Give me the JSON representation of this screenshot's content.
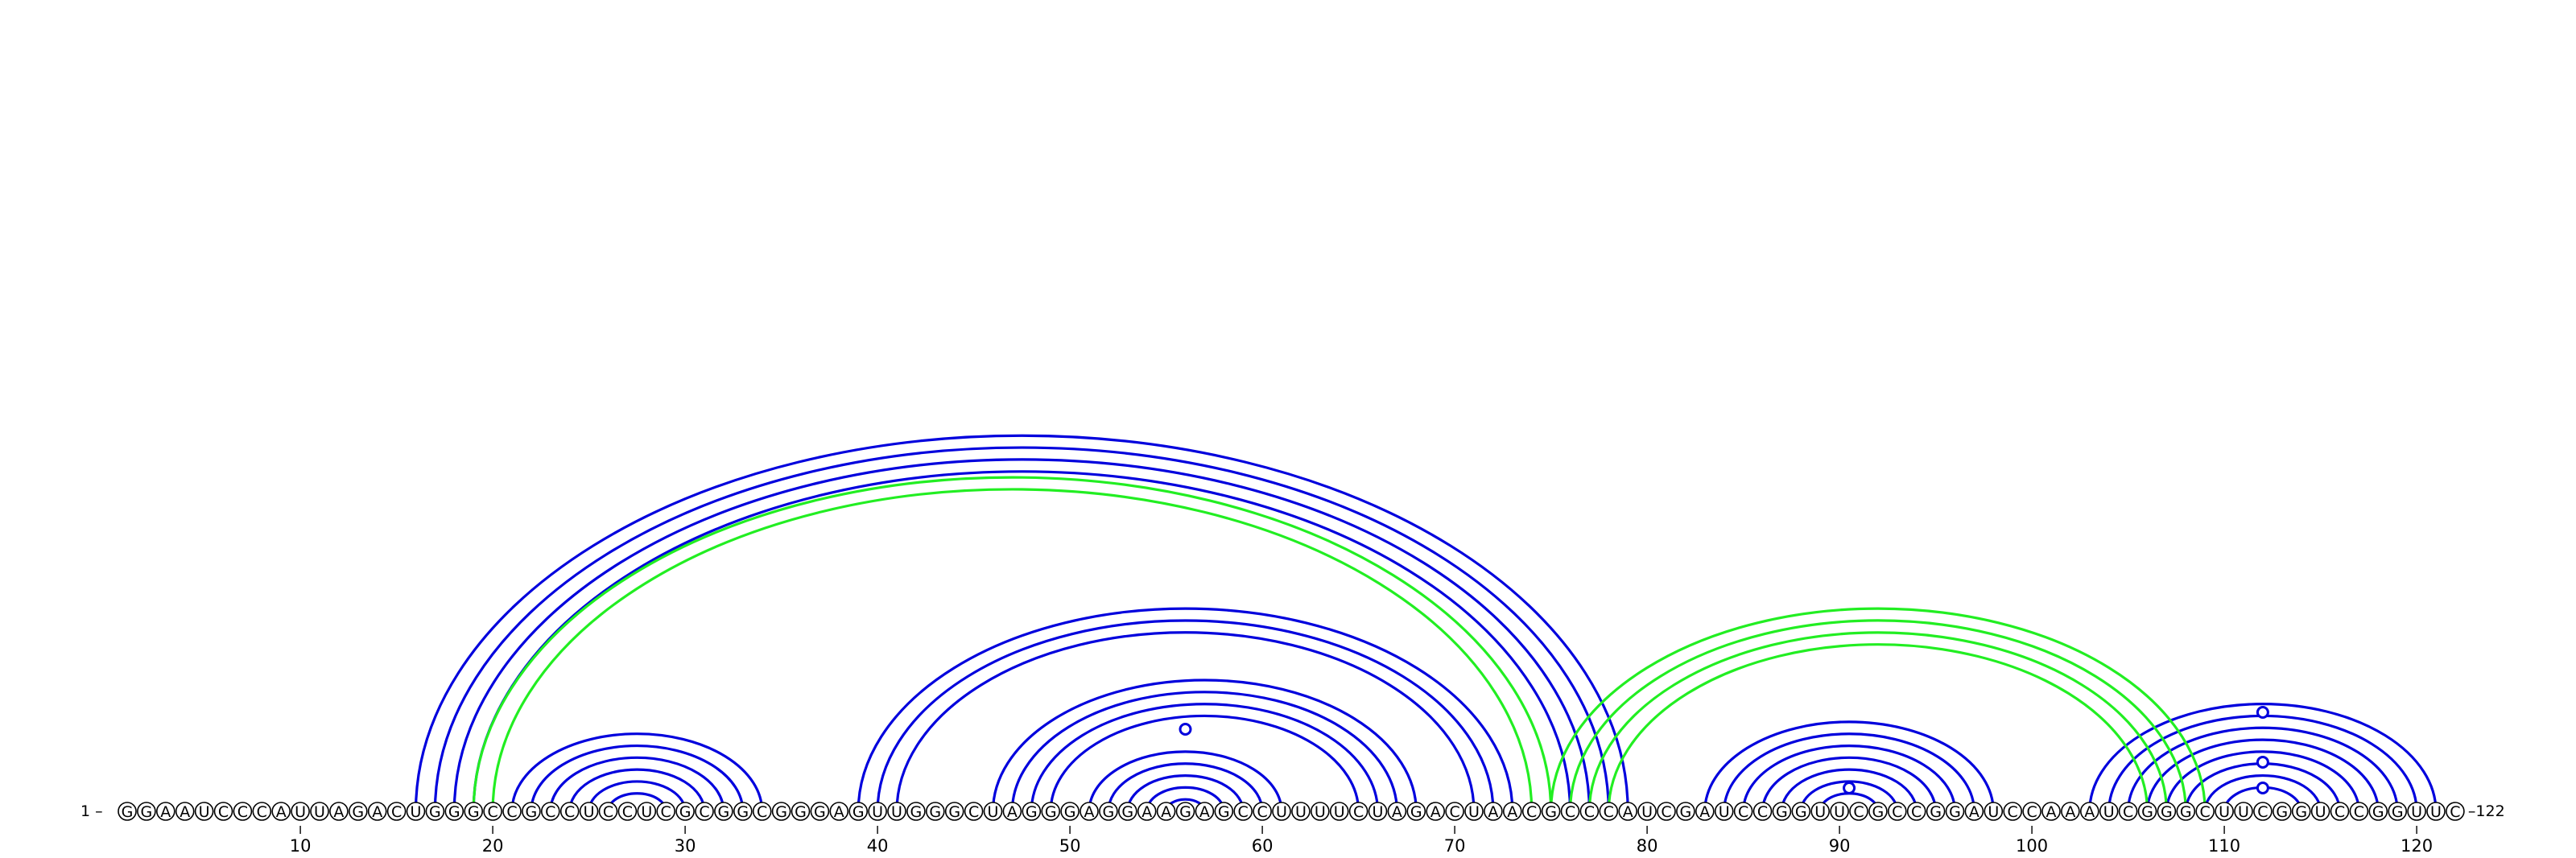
{
  "sequence": "GGAAUCCCAUUAGACUGGGCCGCCUCCUCGCGGCGGGAGUUGGGCUAGGGAGGAAGAGCCUUUUCUAGACUAACGCCCAUCGAUCCGGUUCGCCGGAUCCAAAUCGGGCUUCGGUCCGGUUC",
  "start_label": "1 –",
  "end_label": "–122",
  "ticks": [
    10,
    20,
    30,
    40,
    50,
    60,
    70,
    80,
    90,
    100,
    110,
    120
  ],
  "colors": {
    "base_pair": "#0000dd",
    "pseudoknot": "#22ee22"
  },
  "arcs_blue": [
    [
      16,
      79
    ],
    [
      17,
      78
    ],
    [
      18,
      77
    ],
    [
      19,
      76
    ],
    [
      21,
      34
    ],
    [
      22,
      33
    ],
    [
      23,
      32
    ],
    [
      24,
      31
    ],
    [
      25,
      30
    ],
    [
      26,
      29
    ],
    [
      39,
      73
    ],
    [
      40,
      72
    ],
    [
      41,
      71
    ],
    [
      46,
      68
    ],
    [
      47,
      67
    ],
    [
      48,
      66
    ],
    [
      49,
      65
    ],
    [
      51,
      61
    ],
    [
      52,
      60
    ],
    [
      53,
      59
    ],
    [
      54,
      58
    ],
    [
      55,
      57
    ],
    [
      83,
      98
    ],
    [
      84,
      97
    ],
    [
      85,
      96
    ],
    [
      86,
      95
    ],
    [
      87,
      94
    ],
    [
      88,
      93
    ],
    [
      89,
      92
    ],
    [
      103,
      121
    ],
    [
      104,
      120
    ],
    [
      105,
      119
    ],
    [
      106,
      118
    ],
    [
      107,
      117
    ],
    [
      108,
      116
    ],
    [
      109,
      115
    ],
    [
      110,
      114
    ]
  ],
  "arcs_green": [
    [
      19,
      75
    ],
    [
      20,
      74
    ],
    [
      75,
      109
    ],
    [
      76,
      108
    ],
    [
      77,
      107
    ],
    [
      78,
      106
    ]
  ],
  "markers": [
    {
      "pos": 56,
      "color": "#0000dd"
    },
    {
      "pos": 90.5,
      "color": "#0000dd"
    },
    {
      "pos": 112,
      "color": "#0000dd"
    },
    {
      "pos": 112,
      "color": "#0000dd",
      "rank": 2
    },
    {
      "pos": 112,
      "color": "#0000dd",
      "rank": 3
    }
  ]
}
